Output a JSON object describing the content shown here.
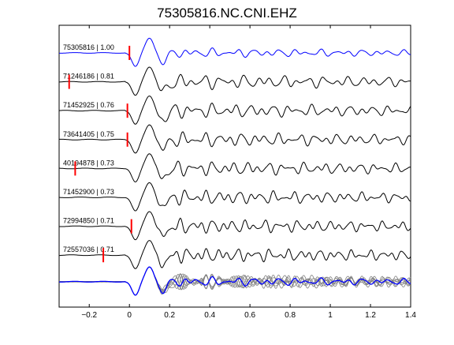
{
  "chart_data": {
    "type": "line",
    "title": "75305816.NC.CNI.EHZ",
    "xlabel": "",
    "ylabel": "",
    "xlim": [
      -0.35,
      1.4
    ],
    "xticks": [
      -0.2,
      0,
      0.2,
      0.4,
      0.6,
      0.8,
      1,
      1.2,
      1.4
    ],
    "xtick_labels": [
      "−0.2",
      "0",
      "0.2",
      "0.4",
      "0.6",
      "0.8",
      "1",
      "1.2",
      "1.4"
    ],
    "grid": false,
    "legend": "none",
    "series": [
      {
        "label": "75305816 | 1.00",
        "color": "#0000ff",
        "pick": 0.0
      },
      {
        "label": "71246186 | 0.81",
        "color": "#000000",
        "pick": -0.3
      },
      {
        "label": "71452925 | 0.76",
        "color": "#000000",
        "pick": -0.01
      },
      {
        "label": "73641405 | 0.75",
        "color": "#000000",
        "pick": -0.01
      },
      {
        "label": "40194878 | 0.73",
        "color": "#000000",
        "pick": -0.27
      },
      {
        "label": "71452900 | 0.73",
        "color": "#000000",
        "pick": null
      },
      {
        "label": "72994850 | 0.71",
        "color": "#000000",
        "pick": 0.01
      },
      {
        "label": "72557036 | 0.71",
        "color": "#000000",
        "pick": -0.13
      }
    ],
    "stack_note": "bottom trace overlays all aligned waveforms"
  },
  "colors": {
    "reference": "#0000ff",
    "trace": "#000000",
    "overlay": "#808080",
    "pick": "#ff0000"
  }
}
